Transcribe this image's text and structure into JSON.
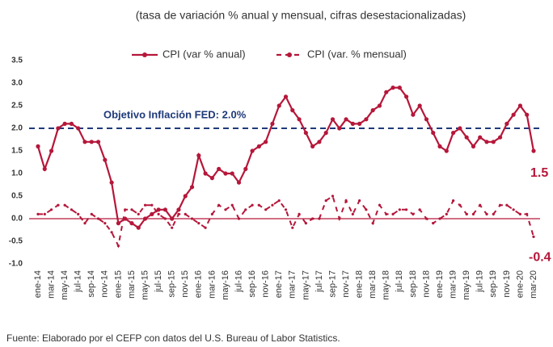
{
  "chart_data": {
    "type": "line",
    "subtitle": "(tasa de variación % anual y mensual, cifras desestacionalizadas)",
    "source": "Fuente: Elaborado por el CEFP con datos del U.S. Bureau of Labor Statistics.",
    "categories": [
      "ene-14",
      null,
      "mar-14",
      null,
      "may-14",
      null,
      "jul-14",
      null,
      "sep-14",
      null,
      "nov-14",
      null,
      "ene-15",
      null,
      "mar-15",
      null,
      "may-15",
      null,
      "jul-15",
      null,
      "sep-15",
      null,
      "nov-15",
      null,
      "ene-16",
      null,
      "mar-16",
      null,
      "may-16",
      null,
      "jul-16",
      null,
      "sep-16",
      null,
      "nov-16",
      null,
      "ene-17",
      null,
      "mar-17",
      null,
      "may-17",
      null,
      "jul-17",
      null,
      "sep-17",
      null,
      "nov-17",
      null,
      "ene-18",
      null,
      "mar-18",
      null,
      "may-18",
      null,
      "jul-18",
      null,
      "sep-18",
      null,
      "nov-18",
      null,
      "ene-19",
      null,
      "mar-19",
      null,
      "may-19",
      null,
      "jul-19",
      null,
      "sep-19",
      null,
      "nov-19",
      null,
      "ene-20",
      null,
      "mar-20"
    ],
    "series": [
      {
        "name": "CPI (var % anual)",
        "color": "#b5173a",
        "dashed": false,
        "values": [
          1.6,
          1.1,
          1.5,
          2.0,
          2.1,
          2.1,
          2.0,
          1.7,
          1.7,
          1.7,
          1.3,
          0.8,
          -0.1,
          0.0,
          -0.1,
          -0.2,
          0.0,
          0.1,
          0.2,
          0.2,
          0.0,
          0.2,
          0.5,
          0.7,
          1.4,
          1.0,
          0.9,
          1.1,
          1.0,
          1.0,
          0.8,
          1.1,
          1.5,
          1.6,
          1.7,
          2.1,
          2.5,
          2.7,
          2.4,
          2.2,
          1.9,
          1.6,
          1.7,
          1.9,
          2.2,
          2.0,
          2.2,
          2.1,
          2.1,
          2.2,
          2.4,
          2.5,
          2.8,
          2.9,
          2.9,
          2.7,
          2.3,
          2.5,
          2.2,
          1.9,
          1.6,
          1.5,
          1.9,
          2.0,
          1.8,
          1.6,
          1.8,
          1.7,
          1.7,
          1.8,
          2.1,
          2.3,
          2.5,
          2.3,
          1.5
        ]
      },
      {
        "name": "CPI (var. % mensual)",
        "color": "#b5173a",
        "dashed": true,
        "values": [
          0.1,
          0.1,
          0.2,
          0.3,
          0.3,
          0.2,
          0.1,
          -0.1,
          0.1,
          0.0,
          -0.1,
          -0.3,
          -0.6,
          0.2,
          0.2,
          0.1,
          0.3,
          0.3,
          0.1,
          0.0,
          -0.2,
          0.1,
          0.1,
          0.0,
          -0.1,
          -0.2,
          0.1,
          0.3,
          0.2,
          0.3,
          0.0,
          0.2,
          0.3,
          0.3,
          0.2,
          0.3,
          0.4,
          0.2,
          -0.2,
          0.1,
          -0.1,
          0.0,
          0.0,
          0.4,
          0.5,
          0.0,
          0.4,
          0.1,
          0.4,
          0.2,
          -0.1,
          0.3,
          0.1,
          0.1,
          0.2,
          0.2,
          0.1,
          0.2,
          0.0,
          -0.1,
          0.0,
          0.1,
          0.4,
          0.3,
          0.1,
          0.1,
          0.3,
          0.1,
          0.1,
          0.3,
          0.3,
          0.2,
          0.1,
          0.1,
          -0.4
        ]
      }
    ],
    "reference_line": {
      "value": 2.0,
      "label": "Objetivo Inflación FED: 2.0%",
      "color": "#1f3a7a"
    },
    "ylim": [
      -1.0,
      3.5
    ],
    "yticks": [
      3.5,
      {
        "value": 3,
        "label": "3.0"
      },
      2.5,
      {
        "value": 2,
        "label": "2.0"
      },
      1.5,
      {
        "value": 1,
        "label": "1.0"
      },
      0.5,
      {
        "value": 0,
        "label": "0.0"
      },
      -0.5,
      {
        "value": -1,
        "label": "-1.0"
      }
    ],
    "grid": false
  }
}
